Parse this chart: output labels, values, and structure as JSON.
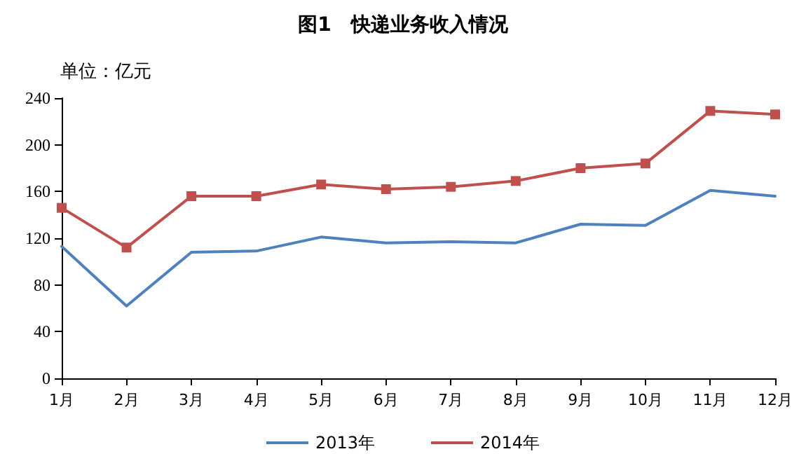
{
  "chart_data": {
    "type": "line",
    "title": "图1　快递业务收入情况",
    "ylabel": "单位：亿元",
    "categories": [
      "1月",
      "2月",
      "3月",
      "4月",
      "5月",
      "6月",
      "7月",
      "8月",
      "9月",
      "10月",
      "11月",
      "12月"
    ],
    "series": [
      {
        "name": "2013年",
        "color": "#4f81bd",
        "marker": "none",
        "values": [
          113,
          62,
          108,
          109,
          121,
          116,
          117,
          116,
          132,
          131,
          161,
          156
        ]
      },
      {
        "name": "2014年",
        "color": "#c0504d",
        "marker": "square",
        "values": [
          146,
          112,
          156,
          156,
          166,
          162,
          164,
          169,
          180,
          184,
          229,
          226
        ]
      }
    ],
    "ylim": [
      0,
      240
    ],
    "yticks": [
      0,
      40,
      80,
      120,
      160,
      200,
      240
    ],
    "grid": false,
    "legend": "bottom"
  }
}
